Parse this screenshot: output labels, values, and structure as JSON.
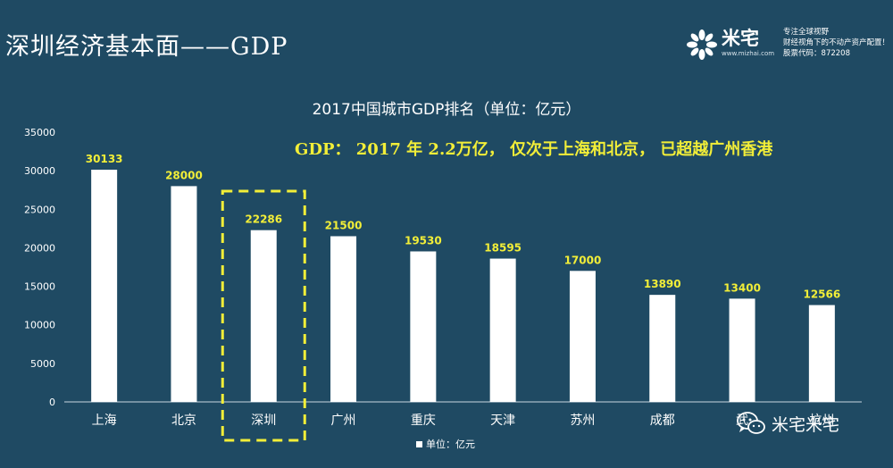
{
  "slide_title": "深圳经济基本面——GDP",
  "brand": {
    "name": "米宅",
    "url": "www.mizhai.com",
    "tagline_lines": [
      "专注全球视野",
      "财经视角下的不动产资产配置！",
      "股票代码：872208"
    ],
    "icon": "mizhai-logo-icon"
  },
  "watermark": {
    "text": "米宅米宅",
    "icon": "wechat-icon"
  },
  "headline": "GDP： 2017 年 2.2万亿， 仅次于上海和北京，    已超越广州香港",
  "highlight_category": "深圳",
  "colors": {
    "background": "#1f4a63",
    "bar": "#ffffff",
    "value_label": "#f2ee38",
    "highlight_box": "#f2ee38"
  },
  "chart_data": {
    "type": "bar",
    "title": "2017中国城市GDP排名（单位：亿元）",
    "categories": [
      "上海",
      "北京",
      "深圳",
      "广州",
      "重庆",
      "天津",
      "苏州",
      "成都",
      "武汉",
      "杭州"
    ],
    "category_labels": [
      "上海",
      "北京",
      "深圳",
      "广州",
      "重庆",
      "天津",
      "苏州",
      "成都",
      "武",
      "杭州"
    ],
    "values": [
      30133,
      28000,
      22286,
      21500,
      19530,
      18595,
      17000,
      13890,
      13400,
      12566
    ],
    "ylim": [
      0,
      35000
    ],
    "yticks": [
      0,
      5000,
      10000,
      15000,
      20000,
      25000,
      30000,
      35000
    ],
    "legend": "单位：亿元",
    "grid": false
  }
}
